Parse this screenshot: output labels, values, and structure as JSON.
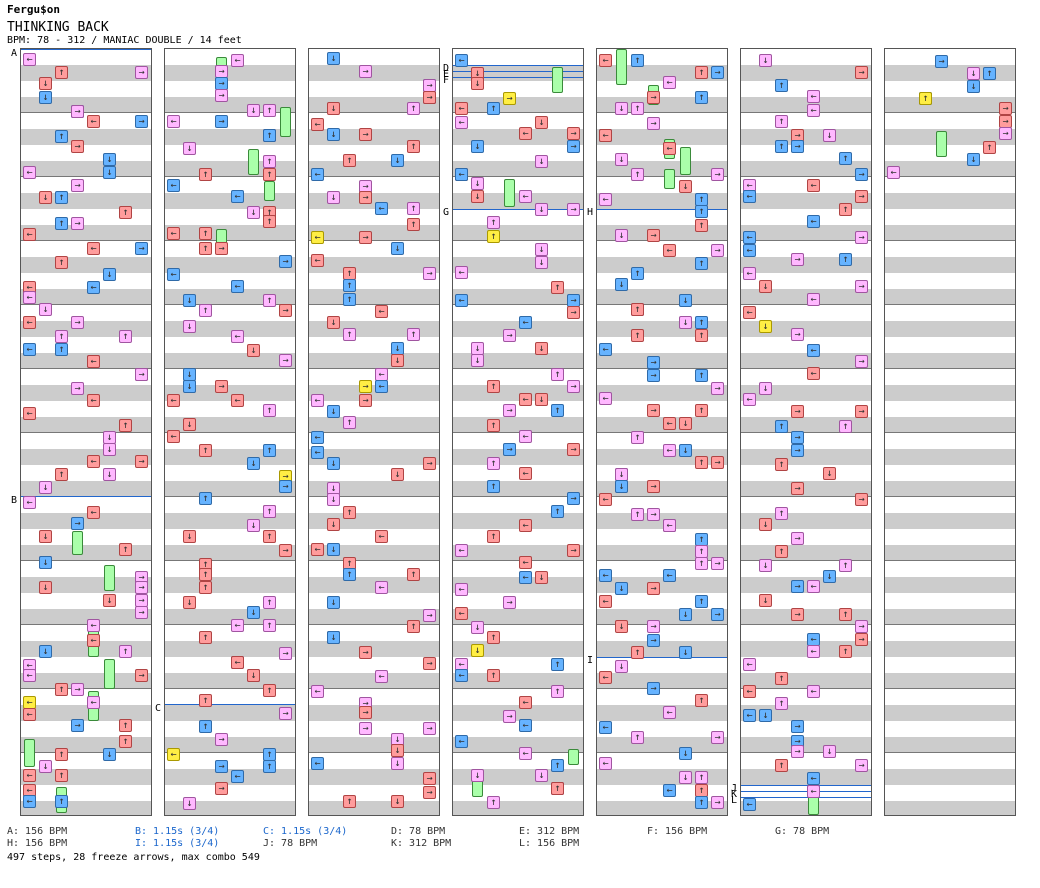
{
  "header": {
    "artist": "Fergu$on",
    "title": "THINKING BACK",
    "meta": "BPM: 78 - 312 / MANIAC DOUBLE / 14 feet"
  },
  "markers": {
    "A": "A",
    "B": "B",
    "C": "C",
    "D": "D",
    "E": "E",
    "F": "F",
    "G": "G",
    "H": "H",
    "I": "I",
    "J": "J",
    "K": "K",
    "L": "L"
  },
  "legend": {
    "A": "A: 156 BPM",
    "B": "B: 1.15s (3/4)",
    "C": "C: 1.15s (3/4)",
    "D": "D: 78 BPM",
    "E": "E: 312 BPM",
    "F": "F: 156 BPM",
    "G": "G: 78 BPM",
    "H": "H: 156 BPM",
    "I": "I: 1.15s (3/4)",
    "J": "J: 78 BPM",
    "K": "K: 312 BPM",
    "L": "L: 156 BPM"
  },
  "summary": "497 steps, 28 freeze arrows, max combo 549",
  "colors": {
    "quarter": "#ff9c9c",
    "eighth": "#66b3ff",
    "sixteenth": "#ffb8ff",
    "other": "#ffee44",
    "freeze": "#aaffaa",
    "bpm_line": "#2266cc"
  },
  "icons": {
    "left": "left-arrow-icon",
    "down": "down-arrow-icon",
    "up": "up-arrow-icon",
    "right": "right-arrow-icon"
  }
}
